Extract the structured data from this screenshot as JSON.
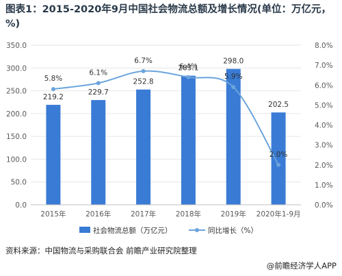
{
  "title": "图表1：2015-2020年9月中国社会物流总额及增长情况(单位：万亿元，%)",
  "source": "资料来源：中国物流与采购联合会 前瞻产业研究院整理",
  "credit": "@前瞻经济学人APP",
  "colors": {
    "bar": "#3a7bd5",
    "line": "#6aa4dc",
    "axis_text": "#595959",
    "grid": "#e6e6e6"
  },
  "chart_data": {
    "type": "bar",
    "categories": [
      "2015年",
      "2016年",
      "2017年",
      "2018年",
      "2019年",
      "2020年1-9月"
    ],
    "series": [
      {
        "name": "社会物流总额（万亿元）",
        "type": "bar",
        "axis": "left",
        "values": [
          219.2,
          229.7,
          252.8,
          283.1,
          298.0,
          202.5
        ],
        "labels": [
          "219.2",
          "229.7",
          "252.8",
          "283.1",
          "298.0",
          "202.5"
        ]
      },
      {
        "name": "同比增长（%）",
        "type": "line",
        "axis": "right",
        "values": [
          5.8,
          6.1,
          6.7,
          6.4,
          5.9,
          2.0
        ],
        "labels": [
          "5.8%",
          "6.1%",
          "6.7%",
          "6.4%",
          "5.9%",
          "2.0%"
        ]
      }
    ],
    "y_left": {
      "min": 0,
      "max": 350,
      "step": 50,
      "ticks": [
        "0.0",
        "50.0",
        "100.0",
        "150.0",
        "200.0",
        "250.0",
        "300.0",
        "350.0"
      ]
    },
    "y_right": {
      "min": 0,
      "max": 8,
      "step": 1,
      "ticks": [
        "0.0%",
        "1.0%",
        "2.0%",
        "3.0%",
        "4.0%",
        "5.0%",
        "6.0%",
        "7.0%",
        "8.0%"
      ]
    },
    "grid": true,
    "legend_position": "bottom"
  }
}
